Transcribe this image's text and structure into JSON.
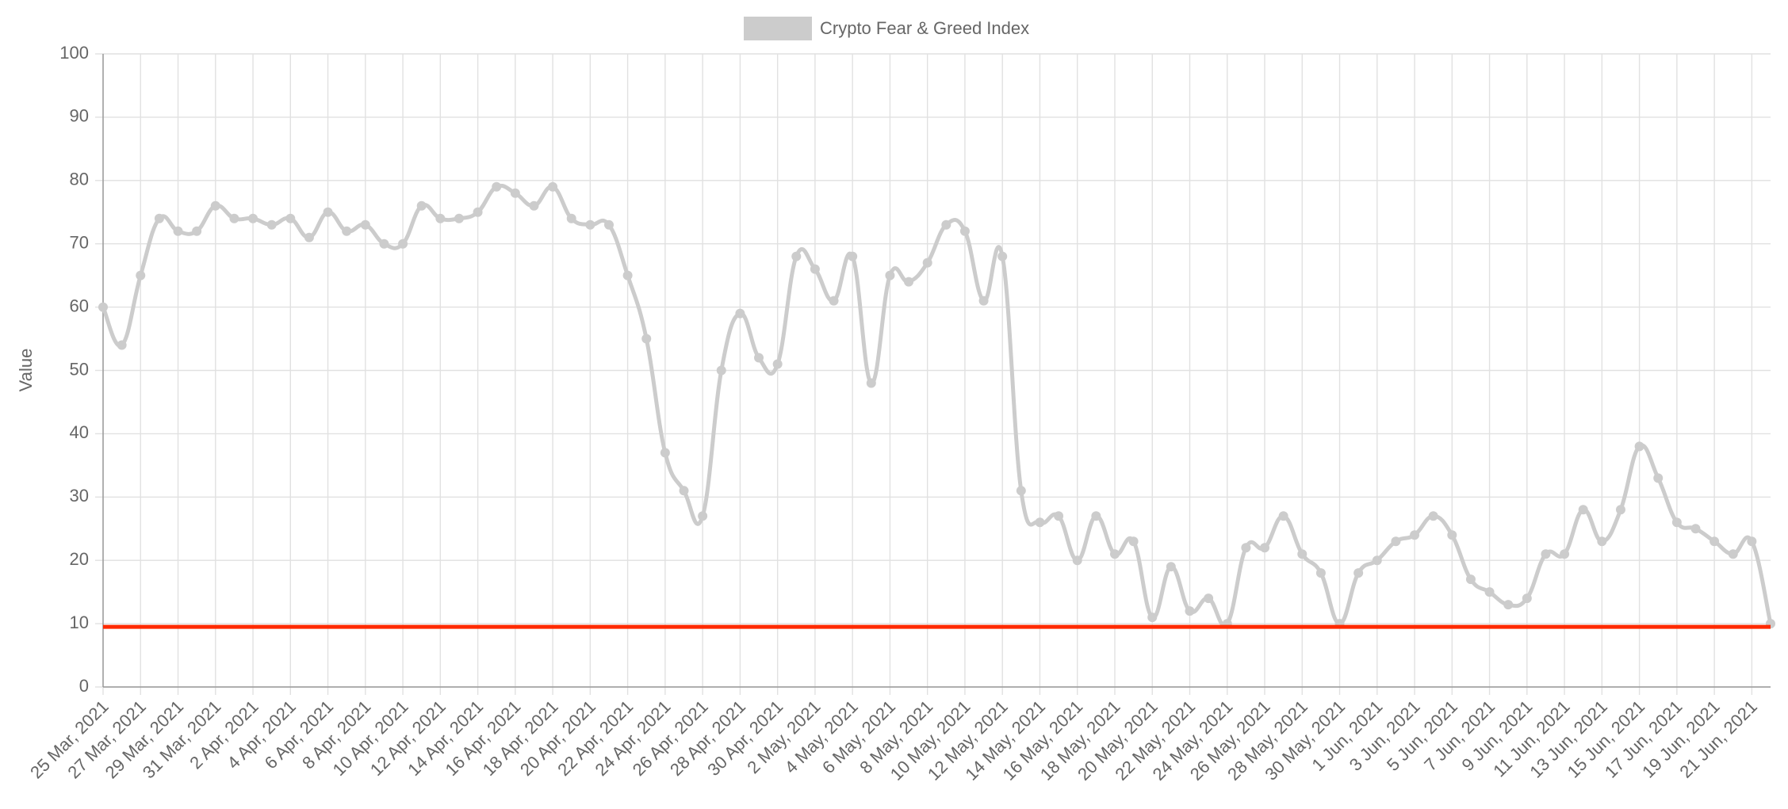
{
  "chart_data": {
    "type": "line",
    "legend_position": "top",
    "y_label": "Value",
    "categories": [
      "25 Mar, 2021",
      null,
      "27 Mar, 2021",
      null,
      "29 Mar, 2021",
      null,
      "31 Mar, 2021",
      null,
      "2 Apr, 2021",
      null,
      "4 Apr, 2021",
      null,
      "6 Apr, 2021",
      null,
      "8 Apr, 2021",
      null,
      "10 Apr, 2021",
      null,
      "12 Apr, 2021",
      null,
      "14 Apr, 2021",
      null,
      "16 Apr, 2021",
      null,
      "18 Apr, 2021",
      null,
      "20 Apr, 2021",
      null,
      "22 Apr, 2021",
      null,
      "24 Apr, 2021",
      null,
      "26 Apr, 2021",
      null,
      "28 Apr, 2021",
      null,
      "30 Apr, 2021",
      null,
      "2 May, 2021",
      null,
      "4 May, 2021",
      null,
      "6 May, 2021",
      null,
      "8 May, 2021",
      null,
      "10 May, 2021",
      null,
      "12 May, 2021",
      null,
      "14 May, 2021",
      null,
      "16 May, 2021",
      null,
      "18 May, 2021",
      null,
      "20 May, 2021",
      null,
      "22 May, 2021",
      null,
      "24 May, 2021",
      null,
      "26 May, 2021",
      null,
      "28 May, 2021",
      null,
      "30 May, 2021",
      null,
      "1 Jun, 2021",
      null,
      "3 Jun, 2021",
      null,
      "5 Jun, 2021",
      null,
      "7 Jun, 2021",
      null,
      "9 Jun, 2021",
      null,
      "11 Jun, 2021",
      null,
      "13 Jun, 2021",
      null,
      "15 Jun, 2021",
      null,
      "17 Jun, 2021",
      null,
      "19 Jun, 2021",
      null,
      "21 Jun, 2021",
      null
    ],
    "series": [
      {
        "name": "Crypto Fear & Greed Index",
        "color": "#cccccc",
        "values": [
          60,
          54,
          65,
          74,
          72,
          72,
          76,
          74,
          74,
          73,
          74,
          71,
          75,
          72,
          73,
          70,
          70,
          76,
          74,
          74,
          75,
          79,
          78,
          76,
          79,
          74,
          73,
          73,
          65,
          55,
          37,
          31,
          27,
          50,
          59,
          52,
          51,
          68,
          66,
          61,
          68,
          48,
          65,
          64,
          67,
          73,
          72,
          61,
          68,
          31,
          26,
          27,
          20,
          27,
          21,
          23,
          11,
          19,
          12,
          14,
          10,
          22,
          22,
          27,
          21,
          18,
          10,
          18,
          20,
          23,
          24,
          27,
          24,
          17,
          15,
          13,
          14,
          21,
          21,
          28,
          23,
          28,
          38,
          33,
          26,
          25,
          23,
          21,
          23,
          10
        ]
      }
    ],
    "reference_line": {
      "value": 9.5,
      "color": "#ff2a00"
    },
    "ylim": [
      0,
      100
    ],
    "yticks": [
      0,
      10,
      20,
      30,
      40,
      50,
      60,
      70,
      80,
      90,
      100
    ],
    "grid": true
  }
}
